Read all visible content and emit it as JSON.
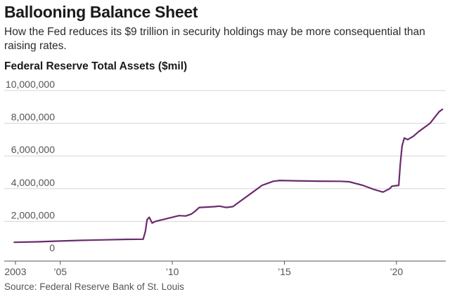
{
  "header": {
    "title": "Ballooning Balance Sheet",
    "subtitle": "How the Fed reduces its $9 trillion in security holdings may be more consequential than raising rates."
  },
  "footer": {
    "source": "Source: Federal Reserve Bank of St. Louis"
  },
  "colors": {
    "line": "#6b2a6e",
    "grid": "#d6d6d6",
    "axis": "#555555"
  },
  "chart_data": {
    "type": "line",
    "title": "Federal Reserve Total Assets ($mil)",
    "xlabel": "",
    "ylabel": "",
    "xlim": [
      2002.5,
      2022.2
    ],
    "ylim": [
      0,
      10000000
    ],
    "grid": true,
    "y_ticks": [
      {
        "value": 0,
        "label": "0"
      },
      {
        "value": 2000000,
        "label": "2,000,000"
      },
      {
        "value": 4000000,
        "label": "4,000,000"
      },
      {
        "value": 6000000,
        "label": "6,000,000"
      },
      {
        "value": 8000000,
        "label": "8,000,000"
      },
      {
        "value": 10000000,
        "label": "10,000,000"
      }
    ],
    "x_ticks": [
      {
        "value": 2003,
        "label": "2003"
      },
      {
        "value": 2005,
        "label": "’05"
      },
      {
        "value": 2010,
        "label": "’10"
      },
      {
        "value": 2015,
        "label": "’15"
      },
      {
        "value": 2020,
        "label": "’20"
      }
    ],
    "series": [
      {
        "name": "Total Assets",
        "x": [
          2002.95,
          2004.0,
          2005.0,
          2006.0,
          2007.0,
          2008.0,
          2008.7,
          2008.8,
          2008.87,
          2008.97,
          2009.1,
          2009.25,
          2009.4,
          2009.55,
          2009.7,
          2009.85,
          2010.0,
          2010.3,
          2010.6,
          2010.85,
          2011.0,
          2011.2,
          2011.5,
          2011.9,
          2012.1,
          2012.4,
          2012.7,
          2013.0,
          2013.5,
          2014.0,
          2014.5,
          2014.8,
          2015.5,
          2016.5,
          2017.5,
          2017.9,
          2018.5,
          2019.0,
          2019.4,
          2019.7,
          2019.8,
          2019.95,
          2020.1,
          2020.17,
          2020.25,
          2020.35,
          2020.5,
          2020.75,
          2021.0,
          2021.5,
          2021.9,
          2022.05
        ],
        "values": [
          720000,
          750000,
          800000,
          840000,
          870000,
          900000,
          910000,
          1400000,
          2100000,
          2250000,
          1900000,
          2000000,
          2050000,
          2100000,
          2150000,
          2200000,
          2250000,
          2350000,
          2330000,
          2450000,
          2600000,
          2850000,
          2870000,
          2900000,
          2930000,
          2850000,
          2900000,
          3200000,
          3700000,
          4200000,
          4450000,
          4500000,
          4480000,
          4460000,
          4450000,
          4420000,
          4200000,
          3950000,
          3790000,
          4000000,
          4150000,
          4180000,
          4200000,
          5500000,
          6600000,
          7100000,
          7000000,
          7200000,
          7500000,
          8000000,
          8700000,
          8850000
        ]
      }
    ]
  }
}
